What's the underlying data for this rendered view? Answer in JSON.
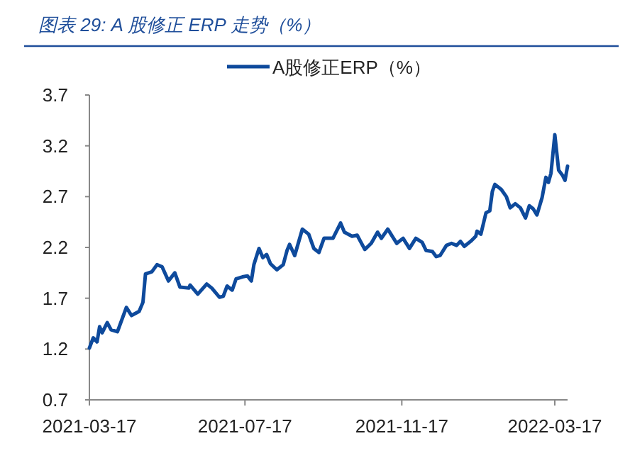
{
  "chart_data": {
    "type": "line",
    "title": "图表 29:  A 股修正 ERP 走势（%）",
    "legend": "top",
    "grid": false,
    "line_style": "solid",
    "marker": "none",
    "x": [
      "2021-03-17",
      "2021-03-20",
      "2021-03-23",
      "2021-03-25",
      "2021-03-27",
      "2021-03-31",
      "2021-04-03",
      "2021-04-08",
      "2021-04-15",
      "2021-04-19",
      "2021-04-25",
      "2021-04-28",
      "2021-04-30",
      "2021-05-05",
      "2021-05-09",
      "2021-05-13",
      "2021-05-18",
      "2021-05-23",
      "2021-05-27",
      "2021-06-03",
      "2021-06-04",
      "2021-06-10",
      "2021-06-17",
      "2021-06-21",
      "2021-06-27",
      "2021-06-30",
      "2021-07-03",
      "2021-07-07",
      "2021-07-10",
      "2021-07-15",
      "2021-07-19",
      "2021-07-22",
      "2021-07-24",
      "2021-07-28",
      "2021-07-31",
      "2021-08-03",
      "2021-08-06",
      "2021-08-11",
      "2021-08-16",
      "2021-08-19",
      "2021-08-21",
      "2021-08-25",
      "2021-08-31",
      "2021-09-05",
      "2021-09-09",
      "2021-09-13",
      "2021-09-17",
      "2021-09-24",
      "2021-09-30",
      "2021-10-03",
      "2021-10-09",
      "2021-10-13",
      "2021-10-19",
      "2021-10-24",
      "2021-10-29",
      "2021-11-01",
      "2021-11-06",
      "2021-11-13",
      "2021-11-18",
      "2021-11-23",
      "2021-11-28",
      "2021-12-03",
      "2021-12-06",
      "2021-12-11",
      "2021-12-14",
      "2021-12-17",
      "2021-12-22",
      "2021-12-26",
      "2021-12-30",
      "2022-01-02",
      "2022-01-05",
      "2022-01-10",
      "2022-01-14",
      "2022-01-15",
      "2022-01-18",
      "2022-01-22",
      "2022-01-25",
      "2022-01-27",
      "2022-01-29",
      "2022-02-03",
      "2022-02-07",
      "2022-02-10",
      "2022-02-14",
      "2022-02-18",
      "2022-02-22",
      "2022-02-25",
      "2022-02-28",
      "2022-03-03",
      "2022-03-07",
      "2022-03-10",
      "2022-03-12",
      "2022-03-14",
      "2022-03-17",
      "2022-03-20",
      "2022-03-23",
      "2022-03-25",
      "2022-03-27"
    ],
    "series": [
      {
        "name": "A股修正ERP（%）",
        "color": "#0e4a9c",
        "values": [
          1.21,
          1.31,
          1.27,
          1.42,
          1.36,
          1.46,
          1.39,
          1.37,
          1.61,
          1.53,
          1.57,
          1.66,
          1.94,
          1.96,
          2.03,
          2.01,
          1.87,
          1.95,
          1.81,
          1.8,
          1.83,
          1.74,
          1.84,
          1.8,
          1.71,
          1.72,
          1.82,
          1.78,
          1.89,
          1.91,
          1.92,
          1.87,
          2.03,
          2.19,
          2.1,
          2.13,
          2.04,
          1.98,
          2.03,
          2.17,
          2.23,
          2.12,
          2.38,
          2.33,
          2.19,
          2.15,
          2.29,
          2.29,
          2.44,
          2.35,
          2.31,
          2.32,
          2.18,
          2.24,
          2.35,
          2.29,
          2.38,
          2.24,
          2.29,
          2.19,
          2.29,
          2.25,
          2.17,
          2.16,
          2.11,
          2.12,
          2.22,
          2.24,
          2.22,
          2.26,
          2.21,
          2.26,
          2.31,
          2.36,
          2.33,
          2.54,
          2.56,
          2.75,
          2.82,
          2.77,
          2.7,
          2.59,
          2.63,
          2.59,
          2.49,
          2.61,
          2.58,
          2.52,
          2.69,
          2.89,
          2.84,
          2.93,
          3.31,
          2.96,
          2.91,
          2.86,
          3.0
        ]
      }
    ],
    "xlim": [
      "2021-03-17",
      "2022-03-27"
    ],
    "xticks": [
      "2021-03-17",
      "2021-07-17",
      "2021-11-17",
      "2022-03-17"
    ],
    "ylim": [
      0.7,
      3.7
    ],
    "yticks": [
      0.7,
      1.2,
      1.7,
      2.2,
      2.7,
      3.2,
      3.7
    ]
  }
}
